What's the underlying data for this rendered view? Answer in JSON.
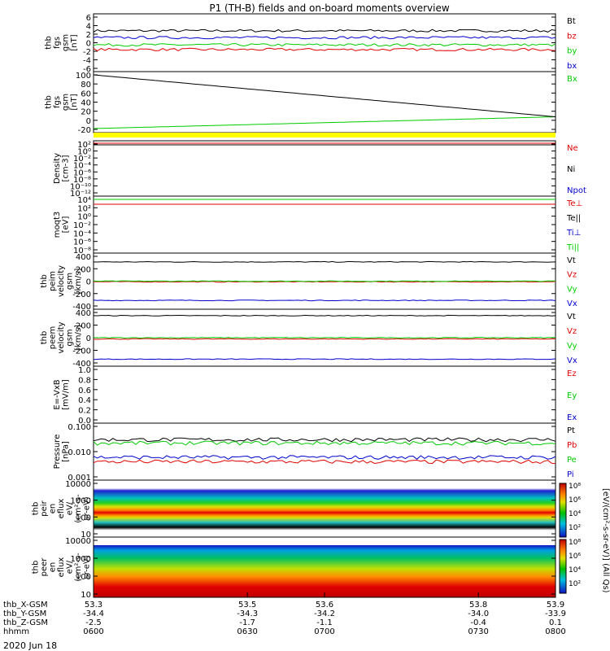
{
  "title": "P1  (TH-B) fields and on-board moments overview",
  "date": "2020 Jun 18",
  "colors": {
    "black": "#000000",
    "red": "#e00000",
    "green": "#00cc00",
    "blue": "#0000cc",
    "yellow": "#ffff00"
  },
  "chart_data": [
    {
      "type": "line",
      "ylabel": "thb\nfgs\ngsm\n[nT]",
      "yticks": [
        "6",
        "4",
        "2",
        "0",
        "-2",
        "-4",
        "-6"
      ],
      "ylim": [
        -6,
        6
      ],
      "series": [
        {
          "name": "Bt",
          "color": "black",
          "level": 2.8
        },
        {
          "name": "bz",
          "color": "red",
          "level": -1.6
        },
        {
          "name": "by",
          "color": "green",
          "level": -0.5
        },
        {
          "name": "bx",
          "color": "blue",
          "level": 1.2
        }
      ]
    },
    {
      "type": "line",
      "ylabel": "thb\nfgs\ngsm\n[nT]",
      "yticks": [
        "100",
        "80",
        "60",
        "40",
        "20",
        "0",
        "-20"
      ],
      "ylim": [
        -30,
        100
      ],
      "series": [
        {
          "name": "Bx",
          "color": "green",
          "start": -28,
          "end": 0
        },
        {
          "name": "",
          "color": "black",
          "start": 100,
          "end": 0
        }
      ]
    },
    {
      "type": "line",
      "ylabel": "Density\n[cm-3]",
      "yticks": [
        "10²",
        "10⁰",
        "10⁻²",
        "10⁻⁴",
        "10⁻⁶",
        "10⁻⁸",
        "10⁻¹⁰",
        "10⁻¹²"
      ],
      "series": [
        {
          "name": "Ne",
          "color": "red"
        },
        {
          "name": "Ni",
          "color": "black"
        },
        {
          "name": "Npot",
          "color": "blue"
        }
      ]
    },
    {
      "type": "line",
      "ylabel": "moqt3\n[eV]",
      "yticks": [
        "10⁴",
        "10²",
        "10⁰",
        "10⁻²",
        "10⁻⁴",
        "10⁻⁶",
        "10⁻⁸"
      ],
      "series": [
        {
          "name": "Te⊥",
          "color": "red"
        },
        {
          "name": "Te||",
          "color": "black"
        },
        {
          "name": "Ti⊥",
          "color": "blue"
        },
        {
          "name": "Ti||",
          "color": "green"
        }
      ]
    },
    {
      "type": "line",
      "ylabel": "thb\npeim\nvelocity\ngsm\n[km/s]",
      "yticks": [
        "400",
        "200",
        "0",
        "-200",
        "-400"
      ],
      "ylim": [
        -400,
        400
      ],
      "series": [
        {
          "name": "Vt",
          "color": "black",
          "level": 310
        },
        {
          "name": "Vz",
          "color": "red",
          "level": -10
        },
        {
          "name": "Vy",
          "color": "green",
          "level": 0
        },
        {
          "name": "Vx",
          "color": "blue",
          "level": -310
        }
      ]
    },
    {
      "type": "line",
      "ylabel": "thb\npeem\nvelocity\ngsm\n[km/s]",
      "yticks": [
        "400",
        "200",
        "0",
        "-200",
        "-400"
      ],
      "ylim": [
        -400,
        400
      ],
      "series": [
        {
          "name": "Vt",
          "color": "black",
          "level": 350
        },
        {
          "name": "Vz",
          "color": "red",
          "level": -20
        },
        {
          "name": "Vy",
          "color": "green",
          "level": 0
        },
        {
          "name": "Vx",
          "color": "blue",
          "level": -340
        }
      ]
    },
    {
      "type": "line",
      "ylabel": "E=-VxB\n[mV/m]",
      "yticks": [
        "1.0",
        "0.8",
        "0.6",
        "0.4",
        "0.2",
        "0.0"
      ],
      "ylim": [
        0,
        1
      ],
      "series": [
        {
          "name": "Ez",
          "color": "red"
        },
        {
          "name": "Ey",
          "color": "green"
        },
        {
          "name": "Ex",
          "color": "blue"
        }
      ]
    },
    {
      "type": "line",
      "ylabel": "Pressure\n[nPa]",
      "yticks": [
        "0.100",
        "0.010",
        "0.001"
      ],
      "series": [
        {
          "name": "Pt",
          "color": "black",
          "level": 0.03
        },
        {
          "name": "Pb",
          "color": "red",
          "level": 0.004
        },
        {
          "name": "Pe",
          "color": "green",
          "level": 0.022
        },
        {
          "name": "Pi",
          "color": "blue",
          "level": 0.006
        }
      ]
    },
    {
      "type": "heatmap",
      "ylabel": "thb\npeir\nen\neflux\neV/\n(cm²-s-\nsr-eV)",
      "yticks": [
        "10000",
        "1000",
        "100",
        "10"
      ]
    },
    {
      "type": "heatmap",
      "ylabel": "thb\npeer\nen\neflux\neV/\n(cm²-s-\nsr-eV)",
      "yticks": [
        "10000",
        "1000",
        "100",
        "10"
      ]
    }
  ],
  "colorbar": {
    "ticks": [
      "10⁸",
      "10⁶",
      "10⁴",
      "10²",
      "10⁸",
      "10⁶",
      "10⁴",
      "10²"
    ],
    "label": "[eV/(cm²-s-sr-eV)] (All Qs)"
  },
  "xaxis": {
    "rows": [
      {
        "label": "thb_X-GSM",
        "values": [
          "53.3",
          "53.5",
          "53.6",
          "53.8",
          "53.9"
        ]
      },
      {
        "label": "thb_Y-GSM",
        "values": [
          "-34.4",
          "-34.3",
          "-34.2",
          "-34.0",
          "-33.9"
        ]
      },
      {
        "label": "thb_Z-GSM",
        "values": [
          "-2.5",
          "-1.7",
          "-1.1",
          "-0.4",
          "0.1"
        ]
      },
      {
        "label": "hhmm",
        "values": [
          "0600",
          "0630",
          "0700",
          "0730",
          "0800"
        ]
      }
    ]
  }
}
